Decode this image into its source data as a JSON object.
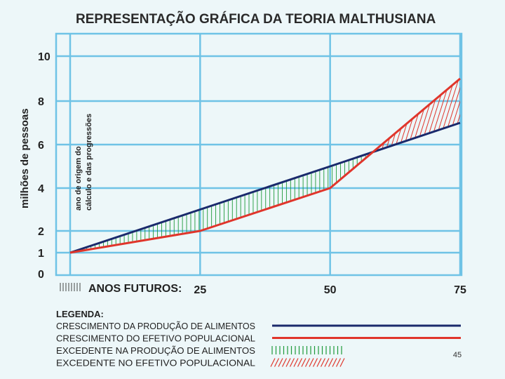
{
  "page_number": "45",
  "chart_data": {
    "type": "line",
    "title": "REPRESENTAÇÃO GRÁFICA DA TEORIA MALTHUSIANA",
    "ylabel": "milhões de pessoas",
    "origin_annotation": [
      "ano de origem do",
      "cálculo e das progressões"
    ],
    "xlabel_prefix": "ANOS FUTUROS:",
    "x_ticks": [
      "25",
      "50",
      "75"
    ],
    "y_ticks": [
      "0",
      "1",
      "2",
      "4",
      "6",
      "8",
      "10"
    ],
    "y_tick_values": [
      0,
      1,
      2,
      4,
      6,
      8,
      10
    ],
    "xlim": [
      0,
      75
    ],
    "grid": true,
    "x": [
      0,
      25,
      50,
      75
    ],
    "series": [
      {
        "name": "CRESCIMENTO DA PRODUÇÃO DE ALIMENTOS",
        "values": [
          1,
          3,
          5,
          7
        ],
        "color": "#1a2a6c"
      },
      {
        "name": "CRESCIMENTO DO EFETIVO POPULACIONAL",
        "values": [
          1,
          2,
          4,
          9
        ],
        "color": "#e0352b"
      }
    ],
    "legend": {
      "title": "LEGENDA:",
      "placement": "bottom",
      "items": [
        {
          "label": "CRESCIMENTO DA PRODUÇÃO DE ALIMENTOS",
          "swatch": "line",
          "color": "#1a2a6c"
        },
        {
          "label": "CRESCIMENTO DO EFETIVO POPULACIONAL",
          "swatch": "line",
          "color": "#e0352b"
        },
        {
          "label": "EXCEDENTE NA PRODUÇÃO DE ALIMENTOS",
          "swatch": "vertical-hatch",
          "color": "#1f9a3a"
        },
        {
          "label": "EXCEDENTE NO EFETIVO POPULACIONAL",
          "swatch": "diagonal-hatch",
          "color": "#e0352b"
        }
      ]
    },
    "colors": {
      "grid": "#6fc3e6",
      "background": "#edf7f9"
    }
  }
}
